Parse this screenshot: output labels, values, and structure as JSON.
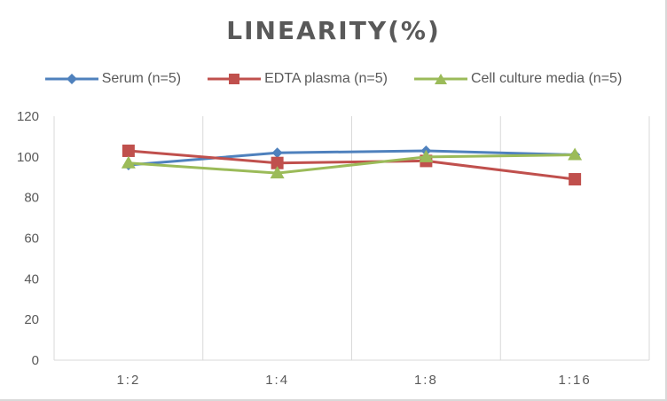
{
  "chart_data": {
    "type": "line",
    "title": "LINEARITY(%)",
    "xlabel": "",
    "ylabel": "",
    "categories": [
      "1:2",
      "1:4",
      "1:8",
      "1:16"
    ],
    "ylim": [
      0,
      120
    ],
    "yticks": [
      "0",
      "20",
      "40",
      "60",
      "80",
      "100",
      "120"
    ],
    "grid": "vertical category gridlines",
    "legend_position": "top",
    "series": [
      {
        "name": "Serum (n=5)",
        "color": "#4f81bd",
        "marker": "diamond",
        "values": [
          96,
          102,
          103,
          101
        ]
      },
      {
        "name": "EDTA plasma (n=5)",
        "color": "#c0504d",
        "marker": "square",
        "values": [
          103,
          97,
          98,
          89
        ]
      },
      {
        "name": "Cell culture media (n=5)",
        "color": "#9bbb59",
        "marker": "triangle",
        "values": [
          97,
          92,
          100,
          101
        ]
      }
    ]
  }
}
